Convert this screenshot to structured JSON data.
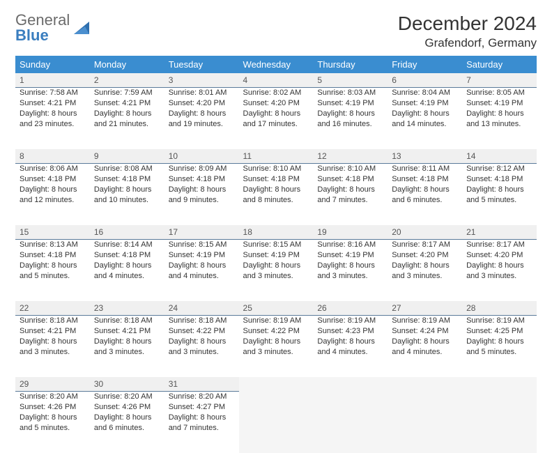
{
  "logo": {
    "text1": "General",
    "text2": "Blue"
  },
  "title": "December 2024",
  "location": "Grafendorf, Germany",
  "colors": {
    "header_bg": "#3a8dd0",
    "header_text": "#ffffff",
    "daynum_bg": "#f0f0f0",
    "daynum_border": "#5a7a99",
    "cell_text": "#333333",
    "logo_grey": "#6b6b6b",
    "logo_blue": "#3a7ebf",
    "empty_bg": "#f5f5f5"
  },
  "weekdays": [
    "Sunday",
    "Monday",
    "Tuesday",
    "Wednesday",
    "Thursday",
    "Friday",
    "Saturday"
  ],
  "weeks": [
    [
      {
        "n": "1",
        "sr": "Sunrise: 7:58 AM",
        "ss": "Sunset: 4:21 PM",
        "d1": "Daylight: 8 hours",
        "d2": "and 23 minutes."
      },
      {
        "n": "2",
        "sr": "Sunrise: 7:59 AM",
        "ss": "Sunset: 4:21 PM",
        "d1": "Daylight: 8 hours",
        "d2": "and 21 minutes."
      },
      {
        "n": "3",
        "sr": "Sunrise: 8:01 AM",
        "ss": "Sunset: 4:20 PM",
        "d1": "Daylight: 8 hours",
        "d2": "and 19 minutes."
      },
      {
        "n": "4",
        "sr": "Sunrise: 8:02 AM",
        "ss": "Sunset: 4:20 PM",
        "d1": "Daylight: 8 hours",
        "d2": "and 17 minutes."
      },
      {
        "n": "5",
        "sr": "Sunrise: 8:03 AM",
        "ss": "Sunset: 4:19 PM",
        "d1": "Daylight: 8 hours",
        "d2": "and 16 minutes."
      },
      {
        "n": "6",
        "sr": "Sunrise: 8:04 AM",
        "ss": "Sunset: 4:19 PM",
        "d1": "Daylight: 8 hours",
        "d2": "and 14 minutes."
      },
      {
        "n": "7",
        "sr": "Sunrise: 8:05 AM",
        "ss": "Sunset: 4:19 PM",
        "d1": "Daylight: 8 hours",
        "d2": "and 13 minutes."
      }
    ],
    [
      {
        "n": "8",
        "sr": "Sunrise: 8:06 AM",
        "ss": "Sunset: 4:18 PM",
        "d1": "Daylight: 8 hours",
        "d2": "and 12 minutes."
      },
      {
        "n": "9",
        "sr": "Sunrise: 8:08 AM",
        "ss": "Sunset: 4:18 PM",
        "d1": "Daylight: 8 hours",
        "d2": "and 10 minutes."
      },
      {
        "n": "10",
        "sr": "Sunrise: 8:09 AM",
        "ss": "Sunset: 4:18 PM",
        "d1": "Daylight: 8 hours",
        "d2": "and 9 minutes."
      },
      {
        "n": "11",
        "sr": "Sunrise: 8:10 AM",
        "ss": "Sunset: 4:18 PM",
        "d1": "Daylight: 8 hours",
        "d2": "and 8 minutes."
      },
      {
        "n": "12",
        "sr": "Sunrise: 8:10 AM",
        "ss": "Sunset: 4:18 PM",
        "d1": "Daylight: 8 hours",
        "d2": "and 7 minutes."
      },
      {
        "n": "13",
        "sr": "Sunrise: 8:11 AM",
        "ss": "Sunset: 4:18 PM",
        "d1": "Daylight: 8 hours",
        "d2": "and 6 minutes."
      },
      {
        "n": "14",
        "sr": "Sunrise: 8:12 AM",
        "ss": "Sunset: 4:18 PM",
        "d1": "Daylight: 8 hours",
        "d2": "and 5 minutes."
      }
    ],
    [
      {
        "n": "15",
        "sr": "Sunrise: 8:13 AM",
        "ss": "Sunset: 4:18 PM",
        "d1": "Daylight: 8 hours",
        "d2": "and 5 minutes."
      },
      {
        "n": "16",
        "sr": "Sunrise: 8:14 AM",
        "ss": "Sunset: 4:18 PM",
        "d1": "Daylight: 8 hours",
        "d2": "and 4 minutes."
      },
      {
        "n": "17",
        "sr": "Sunrise: 8:15 AM",
        "ss": "Sunset: 4:19 PM",
        "d1": "Daylight: 8 hours",
        "d2": "and 4 minutes."
      },
      {
        "n": "18",
        "sr": "Sunrise: 8:15 AM",
        "ss": "Sunset: 4:19 PM",
        "d1": "Daylight: 8 hours",
        "d2": "and 3 minutes."
      },
      {
        "n": "19",
        "sr": "Sunrise: 8:16 AM",
        "ss": "Sunset: 4:19 PM",
        "d1": "Daylight: 8 hours",
        "d2": "and 3 minutes."
      },
      {
        "n": "20",
        "sr": "Sunrise: 8:17 AM",
        "ss": "Sunset: 4:20 PM",
        "d1": "Daylight: 8 hours",
        "d2": "and 3 minutes."
      },
      {
        "n": "21",
        "sr": "Sunrise: 8:17 AM",
        "ss": "Sunset: 4:20 PM",
        "d1": "Daylight: 8 hours",
        "d2": "and 3 minutes."
      }
    ],
    [
      {
        "n": "22",
        "sr": "Sunrise: 8:18 AM",
        "ss": "Sunset: 4:21 PM",
        "d1": "Daylight: 8 hours",
        "d2": "and 3 minutes."
      },
      {
        "n": "23",
        "sr": "Sunrise: 8:18 AM",
        "ss": "Sunset: 4:21 PM",
        "d1": "Daylight: 8 hours",
        "d2": "and 3 minutes."
      },
      {
        "n": "24",
        "sr": "Sunrise: 8:18 AM",
        "ss": "Sunset: 4:22 PM",
        "d1": "Daylight: 8 hours",
        "d2": "and 3 minutes."
      },
      {
        "n": "25",
        "sr": "Sunrise: 8:19 AM",
        "ss": "Sunset: 4:22 PM",
        "d1": "Daylight: 8 hours",
        "d2": "and 3 minutes."
      },
      {
        "n": "26",
        "sr": "Sunrise: 8:19 AM",
        "ss": "Sunset: 4:23 PM",
        "d1": "Daylight: 8 hours",
        "d2": "and 4 minutes."
      },
      {
        "n": "27",
        "sr": "Sunrise: 8:19 AM",
        "ss": "Sunset: 4:24 PM",
        "d1": "Daylight: 8 hours",
        "d2": "and 4 minutes."
      },
      {
        "n": "28",
        "sr": "Sunrise: 8:19 AM",
        "ss": "Sunset: 4:25 PM",
        "d1": "Daylight: 8 hours",
        "d2": "and 5 minutes."
      }
    ],
    [
      {
        "n": "29",
        "sr": "Sunrise: 8:20 AM",
        "ss": "Sunset: 4:26 PM",
        "d1": "Daylight: 8 hours",
        "d2": "and 5 minutes."
      },
      {
        "n": "30",
        "sr": "Sunrise: 8:20 AM",
        "ss": "Sunset: 4:26 PM",
        "d1": "Daylight: 8 hours",
        "d2": "and 6 minutes."
      },
      {
        "n": "31",
        "sr": "Sunrise: 8:20 AM",
        "ss": "Sunset: 4:27 PM",
        "d1": "Daylight: 8 hours",
        "d2": "and 7 minutes."
      },
      null,
      null,
      null,
      null
    ]
  ]
}
